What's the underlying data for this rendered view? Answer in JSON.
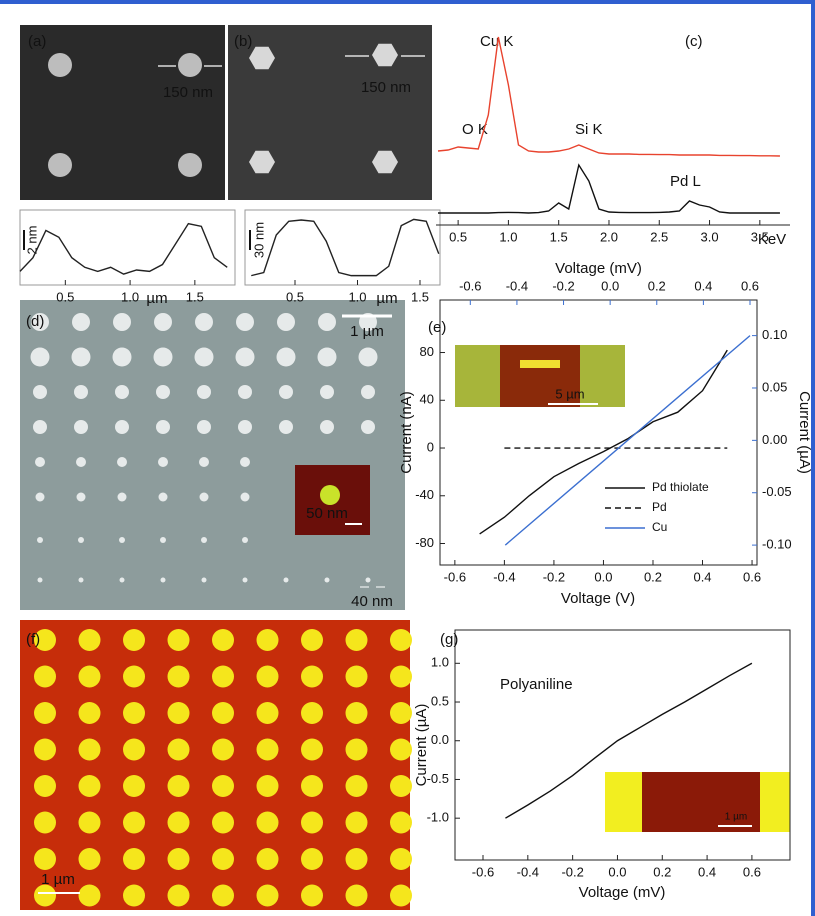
{
  "images": [
    {
      "label": "(a)",
      "scale": "150 nm"
    },
    {
      "label": "(b)",
      "scale": "150 nm"
    },
    {
      "label": "(d)",
      "scale": "1 µm",
      "inset_scale": "50 nm",
      "size": "40 nm"
    },
    {
      "label": "(f)",
      "scale": "1 µm"
    }
  ],
  "chart_data": [
    {
      "type": "line",
      "xlabel": "µm",
      "annotations": [
        "2 nm"
      ],
      "x": [
        0.15,
        0.25,
        0.35,
        0.45,
        0.55,
        0.65,
        0.75,
        0.85,
        0.95,
        1.05,
        1.15,
        1.25,
        1.35,
        1.45,
        1.55,
        1.65,
        1.75
      ],
      "series": [
        {
          "color": "#222222",
          "values": [
            0.5,
            1.5,
            3.5,
            3,
            1.5,
            0.8,
            0.5,
            0.8,
            0.3,
            0.6,
            0.5,
            1,
            2.5,
            4,
            3.8,
            1.5,
            0.8
          ]
        }
      ],
      "xlim": [
        0.15,
        1.81
      ],
      "ylim": [
        -0.5,
        5
      ],
      "xticks": [
        0.5,
        {
          "value": 1,
          "label": "1.0"
        },
        1.5
      ]
    },
    {
      "type": "line",
      "xlabel": "µm",
      "annotations": [
        "30 nm"
      ],
      "x": [
        0.15,
        0.25,
        0.35,
        0.45,
        0.55,
        0.65,
        0.75,
        0.85,
        0.95,
        1.05,
        1.15,
        1.25,
        1.35,
        1.45,
        1.55,
        1.65
      ],
      "series": [
        {
          "color": "#222222",
          "values": [
            5,
            10,
            70,
            92,
            94,
            92,
            60,
            10,
            5,
            5,
            5,
            20,
            85,
            95,
            92,
            40
          ]
        }
      ],
      "xlim": [
        0.1,
        1.66
      ],
      "ylim": [
        -10,
        110
      ],
      "xticks": [
        0.5,
        {
          "value": 1,
          "label": "1.0"
        },
        1.5
      ]
    },
    {
      "type": "line",
      "label": "(c)",
      "xlabel": "KeV",
      "annotations": [
        "Cu K",
        "O K",
        "Si K",
        "Pd L"
      ],
      "x": [
        0.3,
        0.4,
        0.5,
        0.6,
        0.7,
        0.8,
        0.9,
        1.0,
        1.1,
        1.2,
        1.3,
        1.4,
        1.5,
        1.6,
        1.7,
        1.8,
        1.9,
        2.0,
        2.1,
        2.2,
        2.3,
        2.4,
        2.5,
        2.6,
        2.7,
        2.8,
        2.9,
        3.0,
        3.1,
        3.2,
        3.3,
        3.4,
        3.5,
        3.6,
        3.7
      ],
      "series": [
        {
          "color": "#e8432e",
          "values": [
            37,
            37.5,
            39,
            38.5,
            38,
            55,
            94,
            70,
            40,
            37,
            36.5,
            36.5,
            37,
            38,
            40,
            38,
            36,
            35.5,
            35.5,
            35.5,
            35.3,
            35.3,
            35.2,
            35.2,
            35,
            35,
            35,
            35,
            34.8,
            34.8,
            34.7,
            34.7,
            34.6,
            34.6,
            34.5
          ]
        },
        {
          "color": "#111111",
          "values": [
            6,
            6,
            6,
            6,
            6,
            6,
            6.2,
            6.3,
            6.2,
            6,
            6.2,
            7,
            11,
            8,
            30,
            22,
            8,
            6.5,
            6.3,
            6.2,
            6.2,
            6.2,
            6.3,
            6.5,
            7,
            12,
            10,
            9,
            6.5,
            6,
            6,
            6,
            6,
            6,
            6
          ]
        }
      ],
      "xlim": [
        0.28,
        3.8
      ],
      "ylim": [
        0,
        100
      ],
      "xticks": [
        0.5,
        {
          "value": 1,
          "label": "1.0"
        },
        1.5,
        {
          "value": 2,
          "label": "2.0"
        },
        2.5,
        {
          "value": 3,
          "label": "3.0"
        },
        3.5
      ]
    },
    {
      "type": "line",
      "label": "(e)",
      "xlabel": "Voltage (V)",
      "x2label": "Voltage (mV)",
      "ylabel": "Current (nA)",
      "y2label": "Current (µA)",
      "inset_scale": "5 µm",
      "legend": "lower right",
      "series": [
        {
          "name": "Pd thiolate",
          "color": "#111111",
          "x": [
            -0.5,
            -0.4,
            -0.3,
            -0.2,
            -0.1,
            0,
            0.1,
            0.2,
            0.3,
            0.4,
            0.5
          ],
          "values": [
            -72,
            -58,
            -40,
            -24,
            -13,
            -3,
            8,
            22,
            30,
            48,
            82
          ]
        },
        {
          "name": "Pd",
          "color": "#111111",
          "dash": true,
          "x": [
            -0.4,
            0.5
          ],
          "values": [
            0,
            0
          ]
        },
        {
          "name": "Cu",
          "color": "#3b6fd0",
          "xaxis": "x2",
          "axis": "y2",
          "x": [
            -0.45,
            0.6
          ],
          "values": [
            -0.1,
            0.1
          ]
        }
      ],
      "xlim": [
        -0.66,
        0.62
      ],
      "x2lim": [
        -0.73,
        0.63
      ],
      "ylim": [
        -98,
        124
      ],
      "y2lim": [
        -0.119,
        0.134
      ],
      "axis2_color": "#3b6fd0",
      "xticks": [
        -0.6,
        -0.4,
        -0.2,
        {
          "value": 0,
          "label": "0.0"
        },
        0.2,
        0.4,
        0.6
      ],
      "x2ticks": [
        -0.6,
        -0.4,
        -0.2,
        {
          "value": 0,
          "label": "0.0"
        },
        0.2,
        0.4,
        0.6
      ],
      "yticks": [
        -80,
        -40,
        0,
        40,
        80
      ],
      "y2ticks": [
        {
          "value": -0.1,
          "label": "-0.10"
        },
        -0.05,
        {
          "value": 0,
          "label": "0.00"
        },
        0.05,
        {
          "value": 0.1,
          "label": "0.10"
        }
      ]
    },
    {
      "type": "line",
      "label": "(g)",
      "xlabel": "Voltage (mV)",
      "ylabel": "Current (µA)",
      "annotations": [
        "Polyaniline"
      ],
      "inset_scale": "1 µm",
      "series": [
        {
          "color": "#111111",
          "x": [
            -0.5,
            -0.4,
            -0.3,
            -0.2,
            -0.1,
            0,
            0.1,
            0.2,
            0.3,
            0.4,
            0.5,
            0.6
          ],
          "values": [
            -1.0,
            -0.83,
            -0.65,
            -0.45,
            -0.22,
            0,
            0.17,
            0.34,
            0.5,
            0.67,
            0.84,
            1.0
          ]
        }
      ],
      "xlim": [
        -0.725,
        0.77
      ],
      "ylim": [
        -1.54,
        1.43
      ],
      "xticks": [
        -0.6,
        -0.4,
        -0.2,
        {
          "value": 0,
          "label": "0.0"
        },
        0.2,
        0.4,
        0.6
      ],
      "yticks": [
        {
          "value": -1,
          "label": "-1.0"
        },
        -0.5,
        {
          "value": 0,
          "label": "0.0"
        },
        0.5,
        {
          "value": 1,
          "label": "1.0"
        }
      ]
    }
  ]
}
